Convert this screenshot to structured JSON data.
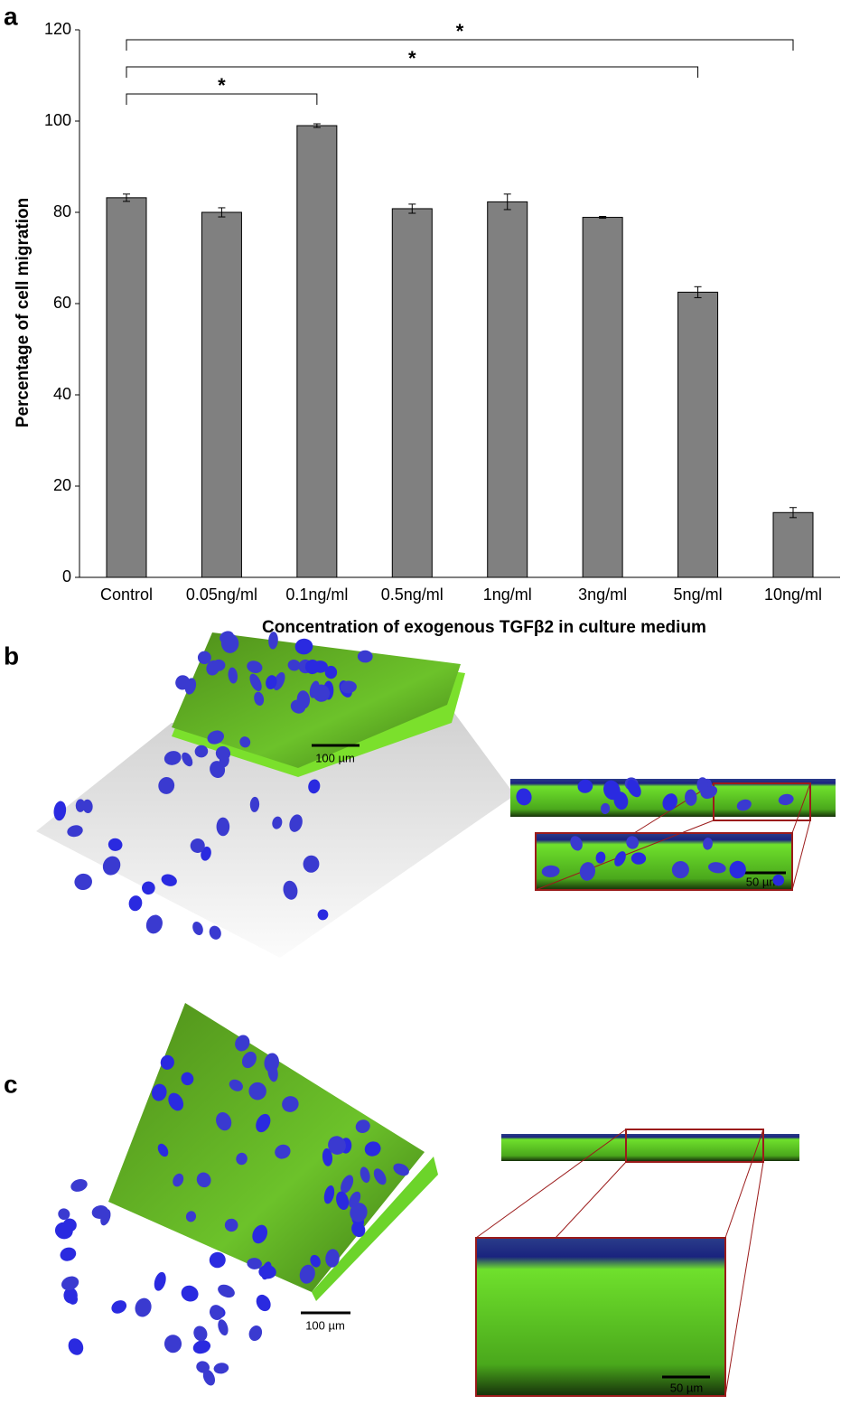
{
  "chart_data": {
    "type": "bar",
    "categories": [
      "Control",
      "0.05ng/ml",
      "0.1ng/ml",
      "0.5ng/ml",
      "1ng/ml",
      "3ng/ml",
      "5ng/ml",
      "10ng/ml"
    ],
    "values": [
      83.2,
      80,
      99,
      80.8,
      82.3,
      78.9,
      62.5,
      14.2
    ],
    "errors": [
      0.8,
      1,
      0.4,
      1,
      1.7,
      0.2,
      1.2,
      1.1
    ],
    "color": "#808080",
    "ylim": [
      0,
      120
    ],
    "yticks": [
      0,
      20,
      40,
      60,
      80,
      100,
      120
    ],
    "y_label": "Percentage of cell migration",
    "x_label": "Concentration of exogenous TGFβ2 in culture medium",
    "significance": [
      {
        "from": "Control",
        "to": "0.1ng/ml",
        "label": "*"
      },
      {
        "from": "Control",
        "to": "5ng/ml",
        "label": "*"
      },
      {
        "from": "Control",
        "to": "10ng/ml",
        "label": "*"
      }
    ]
  },
  "panel_labels": [
    "a",
    "b",
    "c"
  ],
  "panel_b": {
    "scale_3d": "100 µm",
    "scale_zoom": "50 µm"
  },
  "panel_c": {
    "scale_3d": "100 µm",
    "scale_zoom": "50 µm"
  }
}
